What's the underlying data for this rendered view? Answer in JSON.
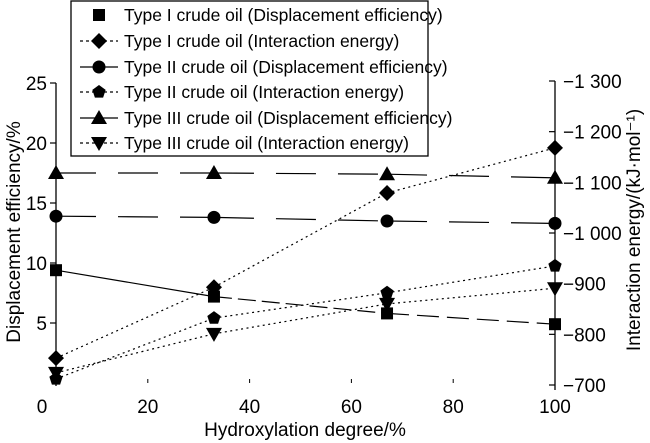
{
  "chart_data": {
    "type": "line",
    "title": "",
    "xlabel": "Hydroxylation degree/%",
    "ylabel_left": "Displacement efficiency/%",
    "ylabel_right": "Interaction energy/(kJ·mol⁻¹)",
    "x_ticks": [
      "0",
      "20",
      "40",
      "60",
      "80",
      "100"
    ],
    "x_tick_values": [
      0,
      20,
      40,
      60,
      80,
      100
    ],
    "xlim": [
      0,
      100
    ],
    "y_left_ticks": [
      "5",
      "10",
      "15",
      "20",
      "25"
    ],
    "y_left_tick_values": [
      5,
      10,
      15,
      20,
      25
    ],
    "ylim_left": [
      0,
      25
    ],
    "y_right_ticks": [
      "−700",
      "−800",
      "−900",
      "−1 000",
      "−1 100",
      "−1 200",
      "−1 300"
    ],
    "y_right_tick_values": [
      -700,
      -800,
      -900,
      -1000,
      -1100,
      -1200,
      -1300
    ],
    "ylim_right": [
      -700,
      -1300
    ],
    "grid": false,
    "legend_position": "top-center",
    "x": [
      2,
      33,
      67,
      100
    ],
    "series": [
      {
        "name": "Type I crude oil (Displacement efficiency)",
        "axis": "left",
        "marker": "square",
        "line": "solid-dashed",
        "values": [
          9.4,
          7.2,
          5.8,
          4.9
        ]
      },
      {
        "name": "Type I crude oil (Interaction energy)",
        "axis": "right",
        "marker": "diamond",
        "line": "dotted",
        "values": [
          -753,
          -893,
          -1079,
          -1168
        ]
      },
      {
        "name": "Type II crude oil (Displacement efficiency)",
        "axis": "left",
        "marker": "circle",
        "line": "long-dash",
        "values": [
          13.9,
          13.8,
          13.5,
          13.3
        ]
      },
      {
        "name": "Type II crude oil (Interaction energy)",
        "axis": "right",
        "marker": "pentagon",
        "line": "dotted",
        "values": [
          -712,
          -832,
          -882,
          -935
        ]
      },
      {
        "name": "Type III crude oil (Displacement efficiency)",
        "axis": "left",
        "marker": "triangle-up",
        "line": "long-dash",
        "values": [
          17.5,
          17.5,
          17.4,
          17.1
        ]
      },
      {
        "name": "Type III crude oil (Interaction energy)",
        "axis": "right",
        "marker": "triangle-down",
        "line": "dotted",
        "values": [
          -724,
          -801,
          -860,
          -891
        ]
      }
    ]
  }
}
